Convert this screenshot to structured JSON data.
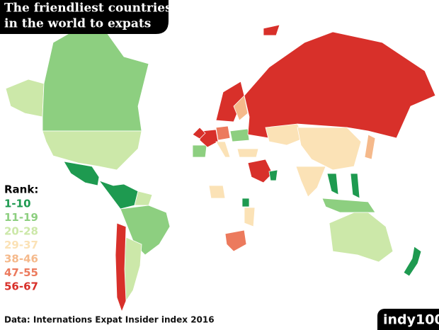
{
  "title_lines": [
    "The friendliest countries",
    "in the world to expats"
  ],
  "legend": {
    "label": "Rank:",
    "items": [
      {
        "label": "1-10",
        "color": "#1e9a50"
      },
      {
        "label": "11-19",
        "color": "#8dcf80"
      },
      {
        "label": "20-28",
        "color": "#cce8a9"
      },
      {
        "label": "29-37",
        "color": "#fbe2b6"
      },
      {
        "label": "38-46",
        "color": "#f5b98b"
      },
      {
        "label": "47-55",
        "color": "#ec7a5d"
      },
      {
        "label": "56-67",
        "color": "#d8302a"
      }
    ]
  },
  "source": "Data: Internations Expat Insider index 2016",
  "logo": "indy100"
}
